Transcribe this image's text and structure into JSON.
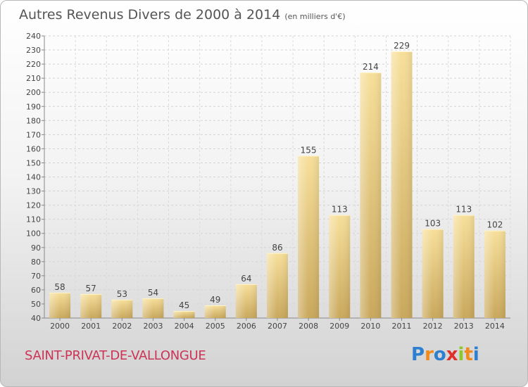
{
  "title": "Autres Revenus Divers de 2000 à 2014",
  "unit": "(en milliers d'€)",
  "commune": "SAINT-PRIVAT-DE-VALLONGUE",
  "logo": {
    "letters": [
      {
        "ch": "P",
        "color": "#2f7fd0"
      },
      {
        "ch": "r",
        "color": "#f08a1c"
      },
      {
        "ch": "o",
        "color": "#2f7fd0"
      },
      {
        "ch": "x",
        "color": "#e0302a"
      },
      {
        "ch": "i",
        "color": "#8ac926"
      },
      {
        "ch": "t",
        "color": "#f08a1c"
      },
      {
        "ch": "i",
        "color": "#2f7fd0"
      }
    ]
  },
  "chart_data": {
    "type": "bar",
    "categories": [
      "2000",
      "2001",
      "2002",
      "2003",
      "2004",
      "2005",
      "2006",
      "2007",
      "2008",
      "2009",
      "2010",
      "2011",
      "2012",
      "2013",
      "2014"
    ],
    "values": [
      58,
      57,
      53,
      54,
      45,
      49,
      64,
      86,
      155,
      113,
      214,
      229,
      103,
      113,
      102
    ],
    "title": "Autres Revenus Divers de 2000 à 2014",
    "xlabel": "",
    "ylabel": "",
    "ylim": [
      40,
      240
    ],
    "yticks": [
      40,
      50,
      60,
      70,
      80,
      90,
      100,
      110,
      120,
      130,
      140,
      150,
      160,
      170,
      180,
      190,
      200,
      210,
      220,
      230,
      240
    ],
    "grid": true,
    "data_labels": true,
    "bar_color": "#e8c878"
  }
}
